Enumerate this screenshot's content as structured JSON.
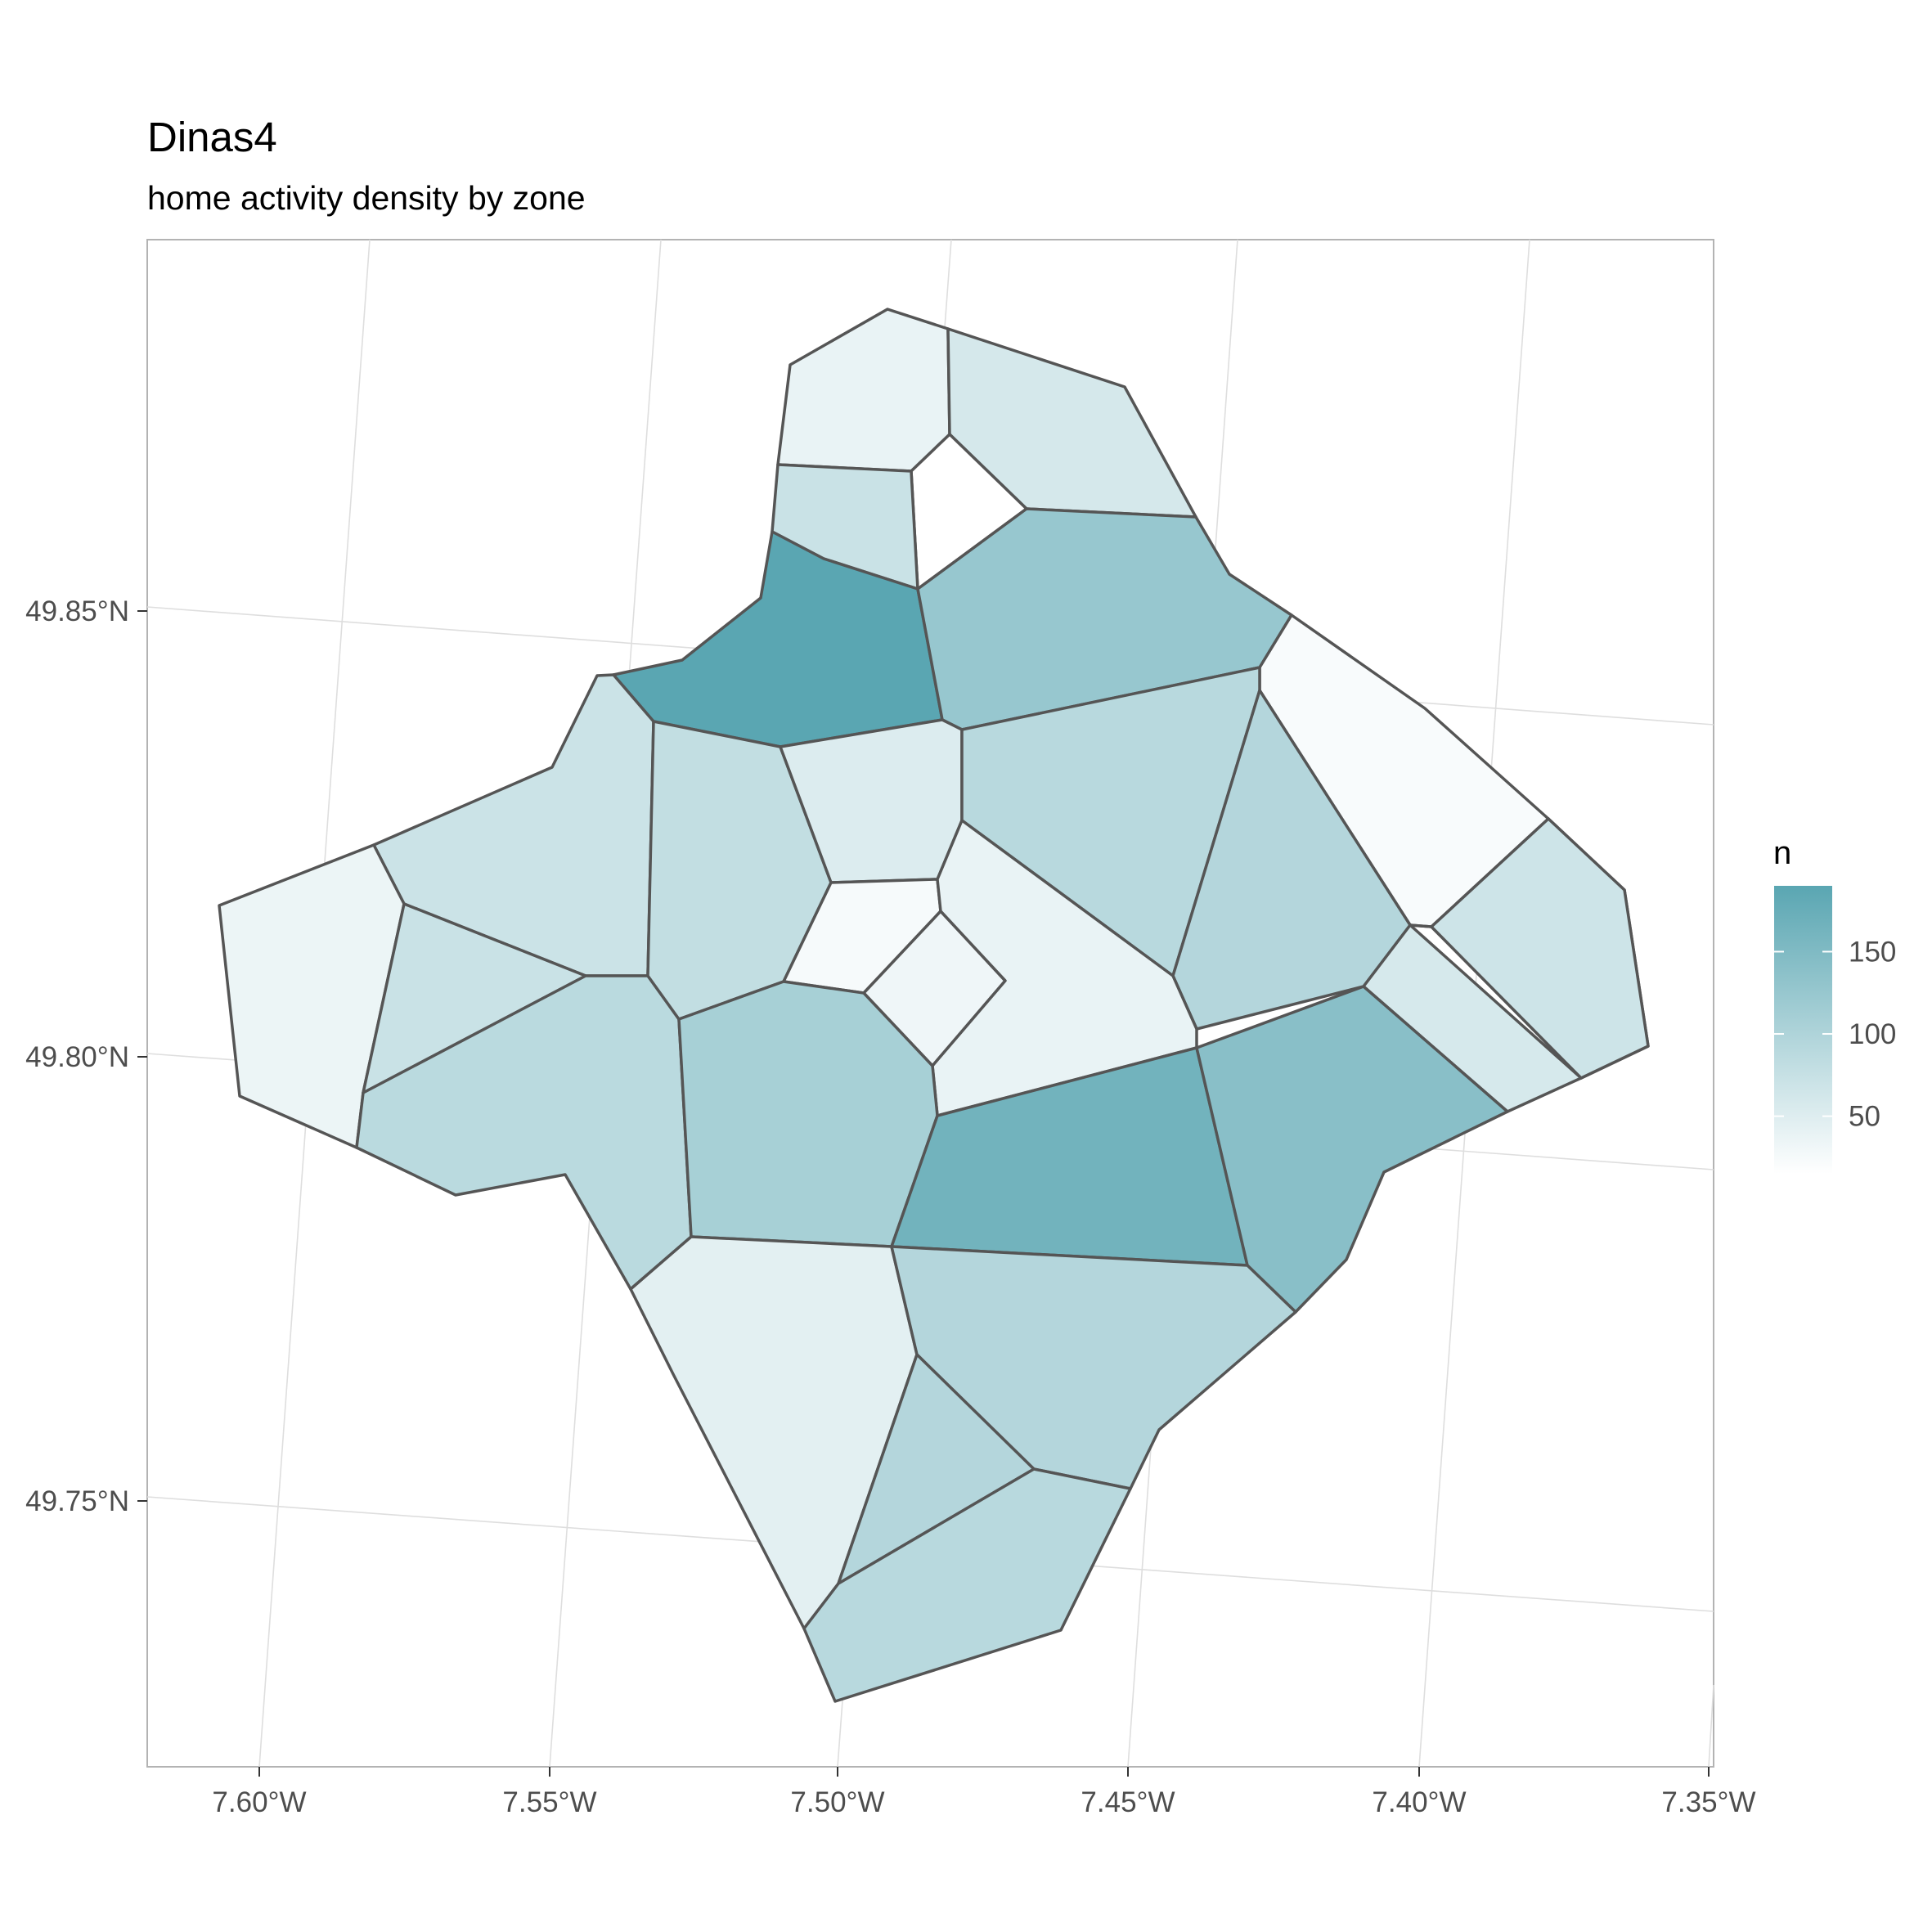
{
  "title": "Dinas4",
  "subtitle": "home activity density by zone",
  "chart_data": {
    "type": "choropleth",
    "x_ticks": [
      "7.60°W",
      "7.55°W",
      "7.50°W",
      "7.45°W",
      "7.40°W",
      "7.35°W"
    ],
    "y_ticks": [
      "49.75°N",
      "49.80°N",
      "49.85°N"
    ],
    "grid": true,
    "legend": {
      "title": "n",
      "position": "right",
      "ticks": [
        50,
        100,
        150
      ],
      "range": [
        15,
        190
      ],
      "color_low": "#ffffff",
      "color_high": "#5aa6b2"
    },
    "zones": [
      {
        "id": "north-west-top",
        "n": 38
      },
      {
        "id": "north-east-top",
        "n": 60
      },
      {
        "id": "north-hole",
        "n": 15
      },
      {
        "id": "north-small",
        "n": 72
      },
      {
        "id": "north-dark",
        "n": 190
      },
      {
        "id": "north-east-big",
        "n": 125
      },
      {
        "id": "east-pale",
        "n": 22
      },
      {
        "id": "west-upper",
        "n": 70
      },
      {
        "id": "west-far",
        "n": 35
      },
      {
        "id": "west-mid",
        "n": 72
      },
      {
        "id": "west-lower",
        "n": 88
      },
      {
        "id": "centre-west",
        "n": 80
      },
      {
        "id": "centre-north",
        "n": 52
      },
      {
        "id": "centre-north-east",
        "n": 90
      },
      {
        "id": "centre-east-large",
        "n": 95
      },
      {
        "id": "east-mid",
        "n": 110
      },
      {
        "id": "east-far",
        "n": 68
      },
      {
        "id": "east-small",
        "n": 58
      },
      {
        "id": "centre-small-a",
        "n": 25
      },
      {
        "id": "centre-small-b",
        "n": 32
      },
      {
        "id": "centre-small-c",
        "n": 38
      },
      {
        "id": "centre-mid",
        "n": 108
      },
      {
        "id": "south-central-dark",
        "n": 165
      },
      {
        "id": "south-east-dark",
        "n": 140
      },
      {
        "id": "south-west",
        "n": 45
      },
      {
        "id": "south-mid",
        "n": 95
      },
      {
        "id": "south-inner",
        "n": 95
      },
      {
        "id": "south-tip",
        "n": 90
      }
    ]
  }
}
